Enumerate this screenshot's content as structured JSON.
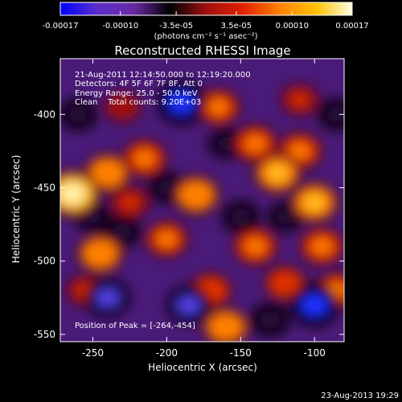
{
  "colorbar": {
    "ticks": [
      "-0.00017",
      "-0.00010",
      "-3.5e-05",
      "3.5e-05",
      "0.00010",
      "0.00017"
    ],
    "tick_values": [
      -0.00017,
      -0.0001,
      -3.5e-05,
      3.5e-05,
      0.0001,
      0.00017
    ],
    "range": [
      -0.00017,
      0.00017
    ],
    "unit_label": "(photons cm⁻² s⁻¹ asec⁻²)",
    "colormap": [
      "#0000ff",
      "#5a2fc8",
      "#6a2aa8",
      "#000000",
      "#a01010",
      "#e02000",
      "#ff8000",
      "#ffc000",
      "#ffffe0"
    ]
  },
  "chart_data": {
    "type": "heatmap",
    "title": "Reconstructed RHESSI Image",
    "xlabel": "Heliocentric X (arcsec)",
    "ylabel": "Heliocentric Y (arcsec)",
    "xlim": [
      -272,
      -80
    ],
    "ylim": [
      -555,
      -362
    ],
    "xticks": [
      -250,
      -200,
      -150,
      -100
    ],
    "yticks": [
      -400,
      -450,
      -500,
      -550
    ],
    "grid": false,
    "info_lines": [
      "21-Aug-2011 12:14:50.000 to 12:19:20.000",
      "Detectors: 4F 5F 6F 7F 8F, Att 0",
      "Energy Range: 25.0 - 50.0 keV",
      "Clean    Total counts: 9.20E+03"
    ],
    "peak_label": "Position of Peak = [-264,-454]",
    "peak_position": [
      -264,
      -454
    ],
    "total_counts": 9200,
    "energy_range_kev": [
      25.0,
      50.0
    ],
    "sources": [
      {
        "x": -264,
        "y": -454,
        "value": 0.00017
      },
      {
        "x": -240,
        "y": -440,
        "value": 0.00012
      },
      {
        "x": -215,
        "y": -430,
        "value": 0.00011
      },
      {
        "x": -180,
        "y": -455,
        "value": 0.00012
      },
      {
        "x": -200,
        "y": -485,
        "value": 0.0001
      },
      {
        "x": -245,
        "y": -495,
        "value": 0.00012
      },
      {
        "x": -165,
        "y": -395,
        "value": 0.0001
      },
      {
        "x": -140,
        "y": -420,
        "value": 0.00011
      },
      {
        "x": -125,
        "y": -440,
        "value": 0.00013
      },
      {
        "x": -110,
        "y": -425,
        "value": 0.00011
      },
      {
        "x": -100,
        "y": -460,
        "value": 0.00013
      },
      {
        "x": -95,
        "y": -490,
        "value": 0.00011
      },
      {
        "x": -140,
        "y": -490,
        "value": 0.00011
      },
      {
        "x": -170,
        "y": -520,
        "value": 9e-05
      },
      {
        "x": -160,
        "y": -545,
        "value": 0.00012
      },
      {
        "x": -120,
        "y": -515,
        "value": 9e-05
      },
      {
        "x": -85,
        "y": -520,
        "value": 0.0001
      },
      {
        "x": -225,
        "y": -460,
        "value": 8e-05
      },
      {
        "x": -255,
        "y": -520,
        "value": 7e-05
      },
      {
        "x": -230,
        "y": -395,
        "value": 6e-05
      },
      {
        "x": -110,
        "y": -390,
        "value": 7e-05
      },
      {
        "x": -190,
        "y": -392,
        "value": -0.00015
      },
      {
        "x": -240,
        "y": -525,
        "value": -0.00012
      },
      {
        "x": -185,
        "y": -530,
        "value": -0.00012
      },
      {
        "x": -100,
        "y": -530,
        "value": -0.00015
      },
      {
        "x": -260,
        "y": -400,
        "value": -8e-05
      },
      {
        "x": -150,
        "y": -470,
        "value": -8e-05
      },
      {
        "x": -200,
        "y": -450,
        "value": -7e-05
      },
      {
        "x": -230,
        "y": -480,
        "value": -7e-05
      },
      {
        "x": -130,
        "y": -540,
        "value": -9e-05
      },
      {
        "x": -85,
        "y": -400,
        "value": -8e-05
      },
      {
        "x": -160,
        "y": -420,
        "value": -6e-05
      },
      {
        "x": -250,
        "y": -470,
        "value": -6e-05
      },
      {
        "x": -120,
        "y": -470,
        "value": -6e-05
      }
    ]
  },
  "footer": {
    "timestamp": "23-Aug-2013 19:29"
  }
}
